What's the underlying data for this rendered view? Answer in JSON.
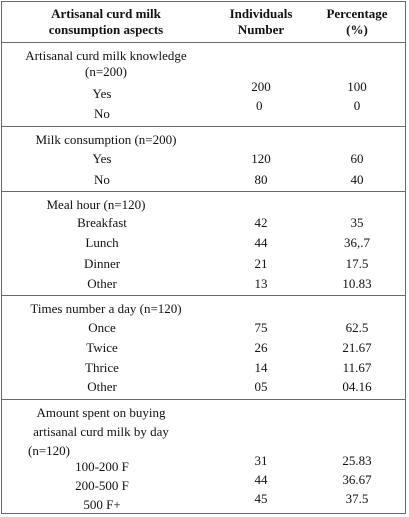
{
  "header": {
    "aspect_line1": "Artisanal curd milk",
    "aspect_line2": "consumption aspects",
    "individuals_line1": "Individuals",
    "individuals_line2": "Number",
    "percentage_line1": "Percentage",
    "percentage_line2": "(%)"
  },
  "sections": [
    {
      "title_lines": [
        "Artisanal curd milk knowledge",
        "(n=200)"
      ],
      "rows": [
        {
          "label": "Yes",
          "number": "200",
          "percent": "100"
        },
        {
          "label": "No",
          "number": "0",
          "percent": "0"
        }
      ]
    },
    {
      "title_lines": [
        "Milk consumption (n=200)"
      ],
      "rows": [
        {
          "label": "Yes",
          "number": "120",
          "percent": "60"
        },
        {
          "label": "No",
          "number": "80",
          "percent": "40"
        }
      ]
    },
    {
      "title_lines": [
        "Meal hour (n=120)"
      ],
      "rows": [
        {
          "label": "Breakfast",
          "number": "42",
          "percent": "35"
        },
        {
          "label": "Lunch",
          "number": "44",
          "percent": "36,.7"
        },
        {
          "label": "Dinner",
          "number": "21",
          "percent": "17.5"
        },
        {
          "label": "Other",
          "number": "13",
          "percent": "10.83"
        }
      ]
    },
    {
      "title_lines": [
        "Times number a day (n=120)"
      ],
      "rows": [
        {
          "label": "Once",
          "number": "75",
          "percent": "62.5"
        },
        {
          "label": "Twice",
          "number": "26",
          "percent": "21.67"
        },
        {
          "label": "Thrice",
          "number": "14",
          "percent": "11.67"
        },
        {
          "label": "Other",
          "number": "05",
          "percent": "04.16"
        }
      ]
    },
    {
      "title_lines": [
        "Amount spent on buying",
        "artisanal curd milk by day",
        "(n=120)"
      ],
      "rows": [
        {
          "label": "100-200 F",
          "number": "31",
          "percent": "25.83"
        },
        {
          "label": "200-500 F",
          "number": "44",
          "percent": "36.67"
        },
        {
          "label": "500 F+",
          "number": "45",
          "percent": "37.5"
        }
      ]
    }
  ]
}
